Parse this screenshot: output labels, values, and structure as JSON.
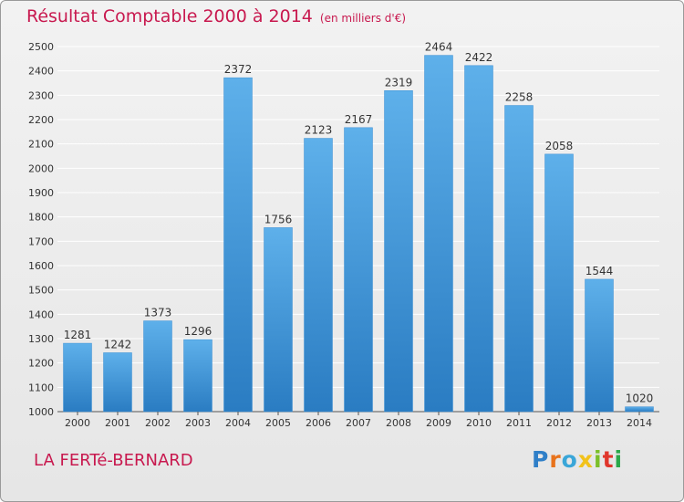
{
  "header": {
    "title": "Résultat Comptable 2000 à 2014",
    "subtitle": "(en milliers d'€)"
  },
  "footer": {
    "commune": "LA FERTé-BERNARD",
    "logo_letters": [
      "P",
      "r",
      "o",
      "x",
      "i",
      "t",
      "i"
    ]
  },
  "colors": {
    "title": "#c8194f",
    "bar_top": "#5eb0ea",
    "bar_bottom": "#2a7cc2",
    "grid": "#ffffff"
  },
  "chart_data": {
    "type": "bar",
    "title": "Résultat Comptable 2000 à 2014",
    "xlabel": "",
    "ylabel": "",
    "categories": [
      "2000",
      "2001",
      "2002",
      "2003",
      "2004",
      "2005",
      "2006",
      "2007",
      "2008",
      "2009",
      "2010",
      "2011",
      "2012",
      "2013",
      "2014"
    ],
    "values": [
      1281,
      1242,
      1373,
      1296,
      2372,
      1756,
      2123,
      2167,
      2319,
      2464,
      2422,
      2258,
      2058,
      1544,
      1020
    ],
    "ylim": [
      1000,
      2500
    ],
    "yticks": [
      1000,
      1100,
      1200,
      1300,
      1400,
      1500,
      1600,
      1700,
      1800,
      1900,
      2000,
      2100,
      2200,
      2300,
      2400,
      2500
    ],
    "grid": true,
    "legend": "none"
  }
}
